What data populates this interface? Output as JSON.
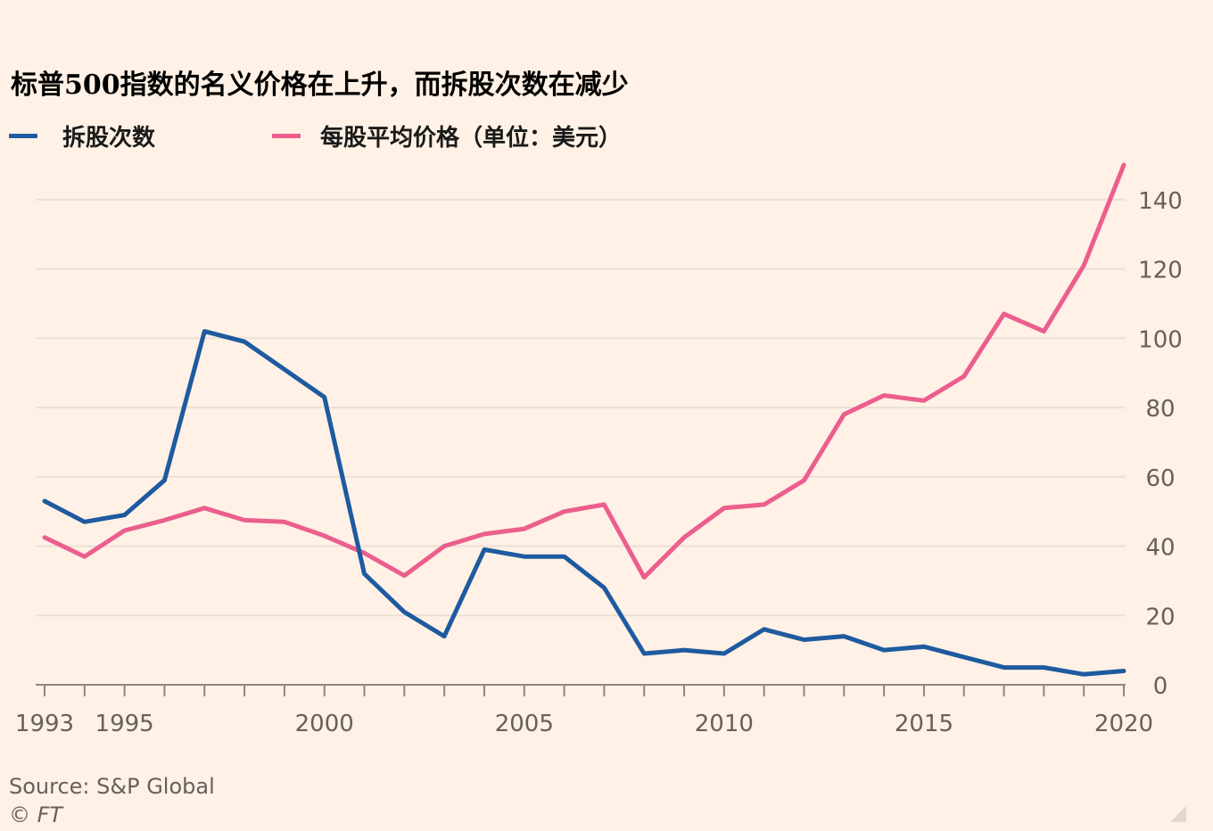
{
  "title": "标普500指数的名义价格在上升，而拆股次数在减少",
  "legend": [
    {
      "label": "拆股次数",
      "color": "#1e5aa0"
    },
    {
      "label": "每股平均价格（单位：美元）",
      "color": "#eb5e8d"
    }
  ],
  "source": "Source: S&P Global",
  "credit": "© FT",
  "chart_data": {
    "type": "line",
    "title": "标普500指数的名义价格在上升，而拆股次数在减少",
    "xlabel": "",
    "ylabel": "",
    "x": [
      1993,
      1994,
      1995,
      1996,
      1997,
      1998,
      1999,
      2000,
      2001,
      2002,
      2003,
      2004,
      2005,
      2006,
      2007,
      2008,
      2009,
      2010,
      2011,
      2012,
      2013,
      2014,
      2015,
      2016,
      2017,
      2018,
      2019,
      2020
    ],
    "series": [
      {
        "name": "拆股次数",
        "color": "#1e5aa0",
        "values": [
          53,
          47,
          49,
          59,
          102,
          99,
          91,
          83,
          32,
          21,
          14,
          39,
          37,
          37,
          28,
          9,
          10,
          9,
          16,
          13,
          14,
          10,
          11,
          8,
          5,
          5,
          3,
          4
        ]
      },
      {
        "name": "每股平均价格（单位：美元）",
        "color": "#eb5e8d",
        "values": [
          42.5,
          37,
          44.5,
          47.5,
          51,
          47.5,
          47,
          43,
          38,
          31.5,
          40,
          43.5,
          45,
          50,
          52,
          31,
          42.5,
          51,
          52,
          59,
          78,
          83.5,
          82,
          89,
          107,
          102,
          121,
          150
        ]
      }
    ],
    "xlim": [
      1993,
      2020
    ],
    "ylim": [
      0,
      150
    ],
    "yticks": [
      0,
      20,
      40,
      60,
      80,
      100,
      120,
      140
    ],
    "xtick_labels": [
      1993,
      1995,
      2000,
      2005,
      2010,
      2015,
      2020
    ],
    "y_axis_position": "right",
    "grid": true,
    "legend_position": "top-left",
    "colors": {
      "background": "#fff1e5",
      "grid": "#ebe0d6",
      "axis": "#8f8580",
      "tick_text": "#66605c"
    }
  }
}
